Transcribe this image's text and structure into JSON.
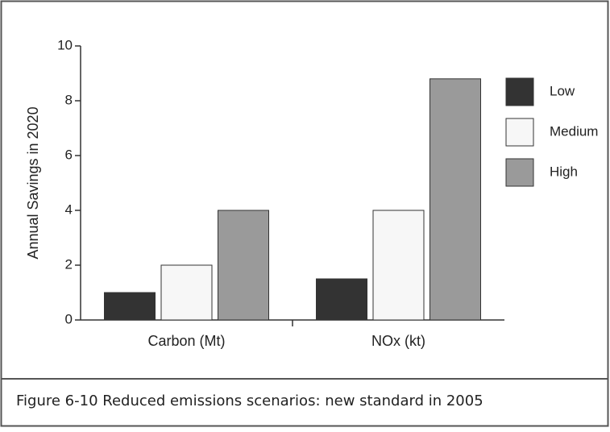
{
  "chart_data": {
    "type": "bar",
    "y_label": "Annual Savings in 2020",
    "categories": [
      "Carbon (Mt)",
      "NOx (kt)"
    ],
    "series": [
      {
        "name": "Low",
        "color": "#333333",
        "values": [
          1,
          1.5
        ]
      },
      {
        "name": "Medium",
        "color": "#f7f7f7",
        "values": [
          2,
          4
        ]
      },
      {
        "name": "High",
        "color": "#9a9a9a",
        "values": [
          4,
          8.8
        ]
      }
    ],
    "ylim": [
      0,
      10
    ],
    "yticks": [
      0,
      2,
      4,
      6,
      8,
      10
    ],
    "grid": false,
    "legend": "right",
    "caption": "Figure 6-10  Reduced emissions scenarios: new standard in 2005"
  }
}
